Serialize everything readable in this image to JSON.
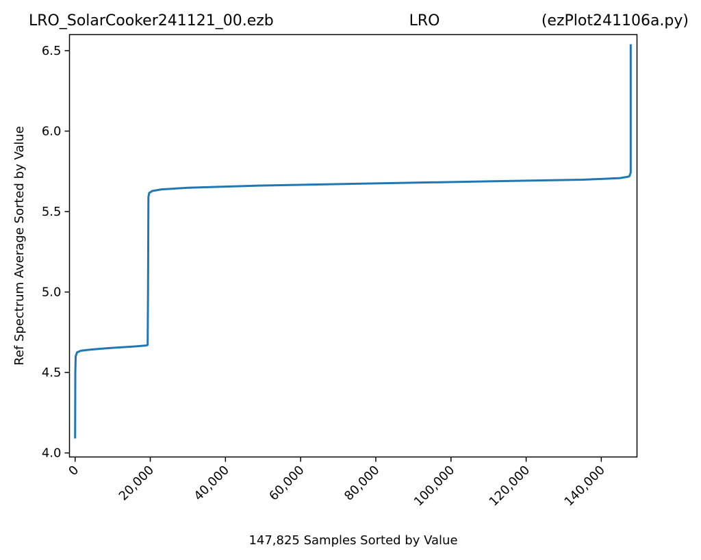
{
  "chart_data": {
    "type": "line",
    "title_left": "LRO_SolarCooker241121_00.ezb",
    "title_center": "LRO",
    "title_right": "(ezPlot241106a.py)",
    "xlabel": "147,825 Samples Sorted by Value",
    "ylabel": "Ref Spectrum Average Sorted by Value",
    "xlim": [
      -1500,
      149500
    ],
    "ylim": [
      3.975,
      6.6
    ],
    "x_ticks": [
      0,
      20000,
      40000,
      60000,
      80000,
      100000,
      120000,
      140000
    ],
    "x_tick_labels": [
      "0",
      "20,000",
      "40,000",
      "60,000",
      "80,000",
      "100,000",
      "120,000",
      "140,000"
    ],
    "y_ticks": [
      4.0,
      4.5,
      5.0,
      5.5,
      6.0,
      6.5
    ],
    "y_tick_labels": [
      "4.0",
      "4.5",
      "5.0",
      "5.5",
      "6.0",
      "6.5"
    ],
    "grid": false,
    "line_color": "#1f77b4",
    "series": [
      {
        "x": [
          0,
          50,
          150,
          500,
          1500,
          4000,
          8000,
          12000,
          16000,
          19000,
          19300,
          19400,
          19500,
          19700,
          20500,
          23000,
          30000,
          50000,
          80000,
          110000,
          135000,
          145000,
          147000,
          147500,
          147700,
          147825,
          147825
        ],
        "y": [
          4.09,
          4.5,
          4.6,
          4.625,
          4.635,
          4.642,
          4.65,
          4.656,
          4.662,
          4.668,
          4.672,
          5.0,
          5.59,
          5.615,
          5.628,
          5.638,
          5.648,
          5.662,
          5.675,
          5.688,
          5.698,
          5.708,
          5.716,
          5.72,
          5.735,
          5.74,
          6.54
        ]
      }
    ]
  }
}
